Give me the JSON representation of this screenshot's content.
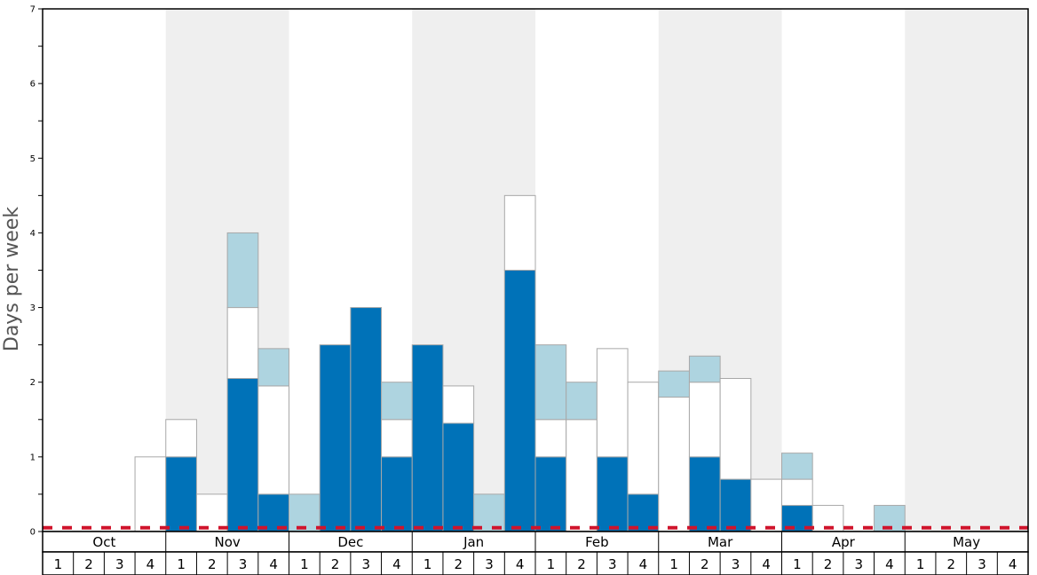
{
  "chart_data": {
    "type": "bar",
    "stacked": true,
    "title": "",
    "xlabel": "",
    "ylabel": "Days per week",
    "ylim": [
      0,
      7
    ],
    "y_ticks": [
      0,
      1,
      2,
      3,
      4,
      5,
      6,
      7
    ],
    "months": [
      "Oct",
      "Nov",
      "Dec",
      "Jan",
      "Feb",
      "Mar",
      "Apr",
      "May"
    ],
    "weeks_per_month": [
      "1",
      "2",
      "3",
      "4"
    ],
    "month_shading": [
      false,
      true,
      false,
      true,
      false,
      true,
      false,
      true
    ],
    "series": [
      {
        "color": "#0072b8",
        "values": [
          0,
          0,
          0,
          0,
          1,
          0,
          2.05,
          0.5,
          0,
          2.5,
          3,
          1,
          2.5,
          1.45,
          0,
          3.5,
          1,
          0,
          1,
          0.5,
          0,
          1,
          0.7,
          0,
          0.35,
          0,
          0,
          0,
          0,
          0,
          0,
          0
        ]
      },
      {
        "color": "#ffffff",
        "values": [
          0,
          0,
          0,
          1,
          0.5,
          0.5,
          0.95,
          1.45,
          0,
          0,
          0,
          0.5,
          0,
          0.5,
          0,
          1,
          0.5,
          1.5,
          1.45,
          1.5,
          1.8,
          1,
          1.35,
          0.7,
          0.35,
          0.35,
          0,
          0,
          0,
          0,
          0,
          0
        ]
      },
      {
        "color": "#aed4e0",
        "values": [
          0,
          0,
          0,
          0,
          0,
          0,
          1,
          0.5,
          0.5,
          0,
          0,
          0.5,
          0,
          0,
          0.5,
          0,
          1,
          0.5,
          0,
          0,
          0.35,
          0.35,
          0,
          0,
          0.35,
          0,
          0,
          0.35,
          0,
          0,
          0,
          0
        ]
      }
    ],
    "reference_line": {
      "y": 0.05,
      "color": "#d0142c",
      "style": "dashed"
    },
    "grid": false,
    "legend": "none"
  }
}
